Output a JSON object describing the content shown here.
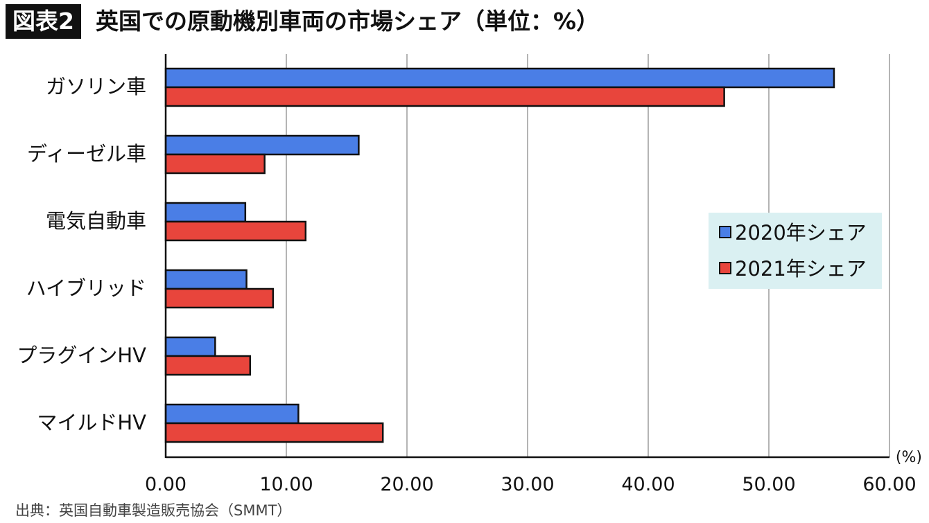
{
  "header": {
    "badge": "図表2",
    "title": "英国での原動機別車両の市場シェア（単位：%）"
  },
  "source": "出典：英国自動車製造販売協会（SMMT）",
  "chart_data": {
    "type": "bar",
    "orientation": "horizontal",
    "categories": [
      "ガソリン車",
      "ディーゼル車",
      "電気自動車",
      "ハイブリッド",
      "プラグインHV",
      "マイルドHV"
    ],
    "series": [
      {
        "name": "2020年シェア",
        "color": "#4a7ee6",
        "values": [
          55.4,
          16.0,
          6.6,
          6.7,
          4.1,
          11.0
        ]
      },
      {
        "name": "2021年シェア",
        "color": "#e8453c",
        "values": [
          46.3,
          8.2,
          11.6,
          8.9,
          7.0,
          18.0
        ]
      }
    ],
    "xlim": [
      0,
      60
    ],
    "xticks": [
      "0.00",
      "10.00",
      "20.00",
      "30.00",
      "40.00",
      "50.00",
      "60.00"
    ],
    "x_unit": "(%)",
    "grid": "vertical",
    "legend_position": "right"
  }
}
